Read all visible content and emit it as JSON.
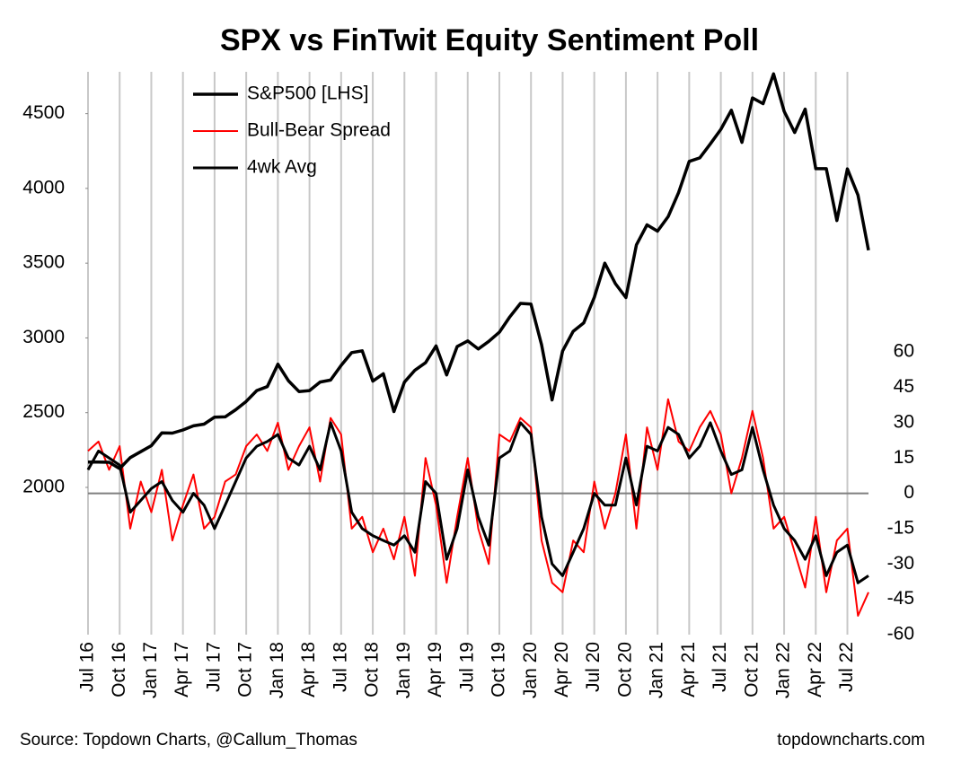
{
  "chart_data": {
    "type": "line",
    "title": "SPX vs FinTwit Equity Sentiment Poll",
    "source": "Source: Topdown Charts, @Callum_Thomas",
    "credit": "topdowncharts.com",
    "categories": [
      "Jul 16",
      null,
      null,
      "Oct 16",
      null,
      null,
      "Jan 17",
      null,
      null,
      "Apr 17",
      null,
      null,
      "Jul 17",
      null,
      null,
      "Oct 17",
      null,
      null,
      "Jan 18",
      null,
      null,
      "Apr 18",
      null,
      null,
      "Jul 18",
      null,
      null,
      "Oct 18",
      null,
      null,
      "Jan 19",
      null,
      null,
      "Apr 19",
      null,
      null,
      "Jul 19",
      null,
      null,
      "Oct 19",
      null,
      null,
      "Jan 20",
      null,
      null,
      "Apr 20",
      null,
      null,
      "Jul 20",
      null,
      null,
      "Oct 20",
      null,
      null,
      "Jan 21",
      null,
      null,
      "Apr 21",
      null,
      null,
      "Jul 21",
      null,
      null,
      "Oct 21",
      null,
      null,
      "Jan 22",
      null,
      null,
      "Apr 22",
      null,
      null,
      "Jul 22",
      null,
      null
    ],
    "series": [
      {
        "name": "S&P500 [LHS]",
        "color": "#000000",
        "axis": "y",
        "values": [
          2170,
          2170,
          2168,
          2126,
          2199,
          2239,
          2279,
          2364,
          2363,
          2384,
          2412,
          2423,
          2470,
          2472,
          2519,
          2575,
          2648,
          2674,
          2824,
          2714,
          2641,
          2648,
          2705,
          2718,
          2816,
          2902,
          2914,
          2711,
          2760,
          2507,
          2704,
          2784,
          2834,
          2946,
          2752,
          2942,
          2980,
          2926,
          2977,
          3038,
          3141,
          3231,
          3226,
          2954,
          2585,
          2912,
          3044,
          3100,
          3271,
          3500,
          3363,
          3270,
          3622,
          3756,
          3714,
          3811,
          3973,
          4181,
          4204,
          4298,
          4395,
          4523,
          4308,
          4605,
          4567,
          4766,
          4516,
          4374,
          4530,
          4132,
          4132,
          3785,
          4130,
          3955,
          3586
        ]
      },
      {
        "name": "Bull-Bear Spread",
        "color": "#ff0000",
        "axis": "y2",
        "values": [
          18,
          22,
          10,
          20,
          -15,
          5,
          -8,
          10,
          -20,
          -5,
          8,
          -15,
          -10,
          5,
          8,
          20,
          25,
          18,
          30,
          10,
          20,
          28,
          5,
          32,
          25,
          -15,
          -10,
          -25,
          -15,
          -28,
          -10,
          -35,
          15,
          -5,
          -38,
          -10,
          15,
          -15,
          -30,
          25,
          22,
          32,
          28,
          -20,
          -38,
          -42,
          -20,
          -25,
          5,
          -15,
          0,
          25,
          -15,
          28,
          10,
          40,
          22,
          18,
          28,
          35,
          25,
          0,
          15,
          35,
          15,
          -15,
          -10,
          -25,
          -40,
          -10,
          -42,
          -20,
          -15,
          -52,
          -42
        ]
      },
      {
        "name": "4wk Avg",
        "color": "#000000",
        "axis": "y2",
        "values": [
          10,
          18,
          15,
          12,
          -8,
          -3,
          2,
          5,
          -3,
          -8,
          0,
          -5,
          -15,
          -5,
          5,
          15,
          20,
          22,
          25,
          15,
          12,
          20,
          10,
          30,
          18,
          -8,
          -15,
          -18,
          -20,
          -22,
          -18,
          -25,
          5,
          0,
          -28,
          -15,
          10,
          -10,
          -22,
          15,
          18,
          30,
          25,
          -10,
          -30,
          -35,
          -25,
          -15,
          0,
          -5,
          -5,
          15,
          -5,
          20,
          18,
          28,
          25,
          15,
          20,
          30,
          18,
          8,
          10,
          28,
          10,
          -5,
          -15,
          -20,
          -28,
          -18,
          -35,
          -25,
          -22,
          -38,
          -35
        ]
      }
    ],
    "ylim": [
      1015,
      4780
    ],
    "yticks": [
      2000,
      2500,
      3000,
      3500,
      4000,
      4500
    ],
    "y2lim": [
      -60,
      179
    ],
    "y2ticks": [
      -60,
      -45,
      -30,
      -15,
      0,
      15,
      30,
      45,
      60
    ],
    "grid": true,
    "legend": "upper left"
  }
}
